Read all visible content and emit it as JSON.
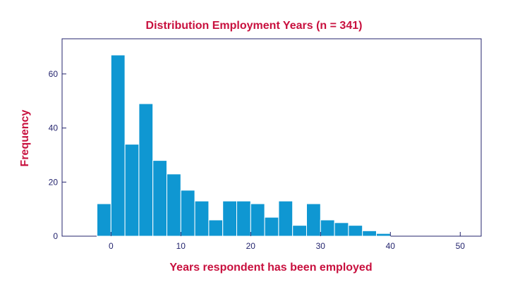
{
  "chart_data": {
    "type": "bar",
    "title": "Distribution Employment Years (n = 341)",
    "xlabel": "Years respondent has been employed",
    "ylabel": "Frequency",
    "bin_width": 2,
    "bins": [
      {
        "start": -2,
        "end": 0,
        "count": 12
      },
      {
        "start": 0,
        "end": 2,
        "count": 67
      },
      {
        "start": 2,
        "end": 4,
        "count": 34
      },
      {
        "start": 4,
        "end": 6,
        "count": 49
      },
      {
        "start": 6,
        "end": 8,
        "count": 28
      },
      {
        "start": 8,
        "end": 10,
        "count": 23
      },
      {
        "start": 10,
        "end": 12,
        "count": 17
      },
      {
        "start": 12,
        "end": 14,
        "count": 13
      },
      {
        "start": 14,
        "end": 16,
        "count": 6
      },
      {
        "start": 16,
        "end": 18,
        "count": 13
      },
      {
        "start": 18,
        "end": 20,
        "count": 13
      },
      {
        "start": 20,
        "end": 22,
        "count": 12
      },
      {
        "start": 22,
        "end": 24,
        "count": 7
      },
      {
        "start": 24,
        "end": 26,
        "count": 13
      },
      {
        "start": 26,
        "end": 28,
        "count": 4
      },
      {
        "start": 28,
        "end": 30,
        "count": 12
      },
      {
        "start": 30,
        "end": 32,
        "count": 6
      },
      {
        "start": 32,
        "end": 34,
        "count": 5
      },
      {
        "start": 34,
        "end": 36,
        "count": 4
      },
      {
        "start": 36,
        "end": 38,
        "count": 2
      },
      {
        "start": 38,
        "end": 40,
        "count": 1
      }
    ],
    "xlim": [
      -7,
      53
    ],
    "ylim": [
      0,
      73
    ],
    "xticks": [
      0,
      10,
      20,
      30,
      40,
      50
    ],
    "yticks": [
      0,
      20,
      40,
      60
    ],
    "grid": false,
    "legend": "none",
    "colors": {
      "bar_fill": "#0F97D2",
      "bar_edge": "#FFFFFF",
      "frame": "#24246E",
      "title_text": "#C8103E",
      "tick_text": "#24246E"
    }
  }
}
